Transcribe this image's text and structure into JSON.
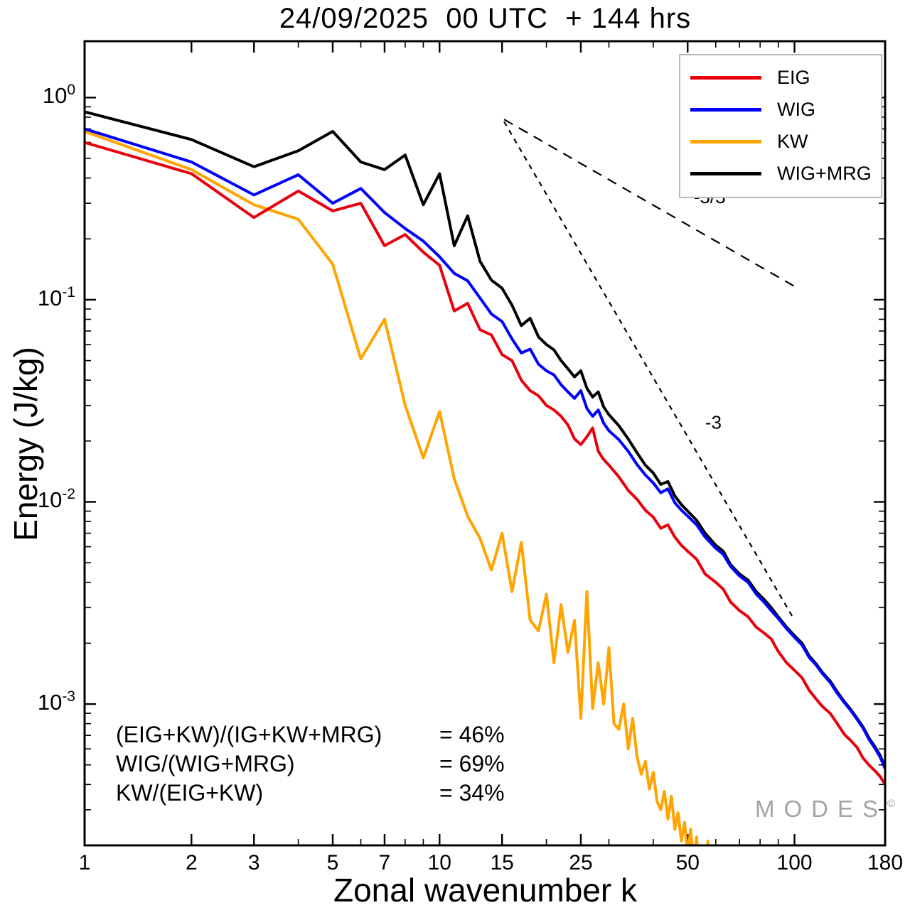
{
  "title": "24/09/2025  00 UTC  + 144 hrs",
  "chart_data": {
    "type": "line",
    "title": "24/09/2025  00 UTC  + 144 hrs",
    "xlabel": "Zonal wavenumber k",
    "ylabel": "Energy (J/kg)",
    "x_scale": "log",
    "y_scale": "log",
    "xlim": [
      1,
      180
    ],
    "ylim": [
      0.0002,
      1.9
    ],
    "grid": false,
    "legend_position": "top-right",
    "x_ticks": {
      "major": [
        1,
        2,
        3,
        5,
        7,
        10,
        15,
        25,
        50,
        100,
        180
      ],
      "labels": [
        "1",
        "2",
        "3",
        "5",
        "7",
        "10",
        "15",
        "25",
        "50",
        "100",
        "180"
      ]
    },
    "y_ticks": {
      "base": "10",
      "major": [
        {
          "v": 1,
          "exp": "0"
        },
        {
          "v": 0.1,
          "exp": "-1"
        },
        {
          "v": 0.01,
          "exp": "-2"
        },
        {
          "v": 0.001,
          "exp": "-3"
        }
      ]
    },
    "draw_order": [
      2,
      0,
      3,
      1
    ],
    "series": [
      {
        "name": "EIG",
        "color": "#e8000d",
        "points": [
          [
            1,
            0.6
          ],
          [
            2,
            0.42
          ],
          [
            3,
            0.255
          ],
          [
            4,
            0.345
          ],
          [
            5,
            0.275
          ],
          [
            6,
            0.3
          ],
          [
            7,
            0.185
          ],
          [
            8,
            0.21
          ],
          [
            9,
            0.172
          ],
          [
            10,
            0.148
          ],
          [
            11,
            0.088
          ],
          [
            12,
            0.096
          ],
          [
            13,
            0.071
          ],
          [
            14,
            0.067
          ],
          [
            15,
            0.0535
          ],
          [
            16,
            0.05
          ],
          [
            17,
            0.04
          ],
          [
            18,
            0.0355
          ],
          [
            19,
            0.0335
          ],
          [
            20,
            0.03
          ],
          [
            21,
            0.0285
          ],
          [
            22,
            0.0265
          ],
          [
            23,
            0.024
          ],
          [
            24,
            0.0205
          ],
          [
            25,
            0.0192
          ],
          [
            26,
            0.021
          ],
          [
            27,
            0.0232
          ],
          [
            28,
            0.0178
          ],
          [
            29,
            0.0162
          ],
          [
            30,
            0.0152
          ],
          [
            32,
            0.0133
          ],
          [
            34,
            0.0114
          ],
          [
            36,
            0.0103
          ],
          [
            38,
            0.0091
          ],
          [
            40,
            0.0084
          ],
          [
            42,
            0.0074
          ],
          [
            44,
            0.0077
          ],
          [
            46,
            0.0067
          ],
          [
            48,
            0.0061
          ],
          [
            50,
            0.0057
          ],
          [
            53,
            0.0052
          ],
          [
            56,
            0.0044
          ],
          [
            60,
            0.004
          ],
          [
            63,
            0.0037
          ],
          [
            66,
            0.0032
          ],
          [
            70,
            0.0029
          ],
          [
            74,
            0.0027
          ],
          [
            78,
            0.0024
          ],
          [
            82,
            0.00225
          ],
          [
            86,
            0.0021
          ],
          [
            90,
            0.00182
          ],
          [
            95,
            0.0016
          ],
          [
            100,
            0.00147
          ],
          [
            105,
            0.00135
          ],
          [
            110,
            0.00117
          ],
          [
            115,
            0.00106
          ],
          [
            120,
            0.00097
          ],
          [
            126,
            0.0009
          ],
          [
            132,
            0.0008
          ],
          [
            138,
            0.00071
          ],
          [
            144,
            0.00066
          ],
          [
            150,
            0.00061
          ],
          [
            156,
            0.00054
          ],
          [
            162,
            0.0005
          ],
          [
            168,
            0.00047
          ],
          [
            174,
            0.00044
          ],
          [
            180,
            0.0004
          ]
        ]
      },
      {
        "name": "WIG",
        "color": "#0000ff",
        "points": [
          [
            1,
            0.7
          ],
          [
            2,
            0.48
          ],
          [
            3,
            0.33
          ],
          [
            4,
            0.415
          ],
          [
            5,
            0.3
          ],
          [
            6,
            0.355
          ],
          [
            7,
            0.27
          ],
          [
            8,
            0.225
          ],
          [
            9,
            0.195
          ],
          [
            10,
            0.163
          ],
          [
            11,
            0.135
          ],
          [
            12,
            0.124
          ],
          [
            13,
            0.102
          ],
          [
            14,
            0.085
          ],
          [
            15,
            0.078
          ],
          [
            16,
            0.064
          ],
          [
            17,
            0.0545
          ],
          [
            18,
            0.057
          ],
          [
            19,
            0.048
          ],
          [
            20,
            0.0445
          ],
          [
            21,
            0.0425
          ],
          [
            22,
            0.038
          ],
          [
            23,
            0.035
          ],
          [
            24,
            0.0325
          ],
          [
            25,
            0.0355
          ],
          [
            26,
            0.029
          ],
          [
            27,
            0.0265
          ],
          [
            28,
            0.0285
          ],
          [
            29,
            0.0245
          ],
          [
            30,
            0.0225
          ],
          [
            32,
            0.0203
          ],
          [
            34,
            0.0178
          ],
          [
            36,
            0.0153
          ],
          [
            38,
            0.0136
          ],
          [
            40,
            0.0124
          ],
          [
            42,
            0.0111
          ],
          [
            44,
            0.0116
          ],
          [
            46,
            0.0099
          ],
          [
            48,
            0.0091
          ],
          [
            50,
            0.0085
          ],
          [
            53,
            0.0077
          ],
          [
            56,
            0.0067
          ],
          [
            60,
            0.0059
          ],
          [
            63,
            0.0055
          ],
          [
            66,
            0.0048
          ],
          [
            70,
            0.0043
          ],
          [
            74,
            0.004
          ],
          [
            78,
            0.0035
          ],
          [
            82,
            0.0032
          ],
          [
            86,
            0.0029
          ],
          [
            90,
            0.00265
          ],
          [
            95,
            0.00236
          ],
          [
            100,
            0.00214
          ],
          [
            105,
            0.00196
          ],
          [
            110,
            0.0017
          ],
          [
            115,
            0.00156
          ],
          [
            120,
            0.00141
          ],
          [
            126,
            0.00128
          ],
          [
            132,
            0.00113
          ],
          [
            138,
            0.00102
          ],
          [
            144,
            0.00093
          ],
          [
            150,
            0.00084
          ],
          [
            156,
            0.00076
          ],
          [
            162,
            0.00067
          ],
          [
            168,
            0.00061
          ],
          [
            174,
            0.00055
          ],
          [
            180,
            0.00048
          ]
        ]
      },
      {
        "name": "KW",
        "color": "#ffa400",
        "points": [
          [
            1,
            0.68
          ],
          [
            2,
            0.44
          ],
          [
            3,
            0.295
          ],
          [
            4,
            0.25
          ],
          [
            5,
            0.15
          ],
          [
            6,
            0.051
          ],
          [
            7,
            0.08
          ],
          [
            8,
            0.03
          ],
          [
            9,
            0.0165
          ],
          [
            10,
            0.028
          ],
          [
            11,
            0.013
          ],
          [
            12,
            0.0085
          ],
          [
            13,
            0.0066
          ],
          [
            14,
            0.0046
          ],
          [
            15,
            0.007
          ],
          [
            16,
            0.0036
          ],
          [
            17,
            0.0063
          ],
          [
            18,
            0.0026
          ],
          [
            19,
            0.0023
          ],
          [
            20,
            0.0035
          ],
          [
            21,
            0.0016
          ],
          [
            22,
            0.0031
          ],
          [
            23,
            0.0018
          ],
          [
            24,
            0.0026
          ],
          [
            25,
            0.00085
          ],
          [
            26,
            0.0036
          ],
          [
            27,
            0.00095
          ],
          [
            28,
            0.0016
          ],
          [
            29,
            0.001
          ],
          [
            30,
            0.0019
          ],
          [
            31,
            0.0008
          ],
          [
            32,
            0.00075
          ],
          [
            33,
            0.001
          ],
          [
            34,
            0.0006
          ],
          [
            35,
            0.00085
          ],
          [
            36,
            0.00055
          ],
          [
            37,
            0.00045
          ],
          [
            38,
            0.00052
          ],
          [
            39,
            0.00038
          ],
          [
            40,
            0.00046
          ],
          [
            41,
            0.00033
          ],
          [
            42,
            0.0003
          ],
          [
            43,
            0.00037
          ],
          [
            44,
            0.00027
          ],
          [
            45,
            0.00035
          ],
          [
            46,
            0.00024
          ],
          [
            47,
            0.00029
          ],
          [
            48,
            0.00021
          ],
          [
            49,
            0.00026
          ],
          [
            50,
            0.00018
          ],
          [
            51,
            0.00024
          ],
          [
            52,
            0.00016
          ],
          [
            53,
            0.00022
          ],
          [
            54,
            0.00014
          ],
          [
            55,
            0.00019
          ],
          [
            56,
            0.00012
          ],
          [
            57,
            0.00021
          ],
          [
            58,
            0.00011
          ],
          [
            59,
            0.00019
          ],
          [
            60,
            0.0001
          ],
          [
            61,
            0.00018
          ],
          [
            62,
            9e-05
          ],
          [
            63,
            0.00017
          ],
          [
            64,
            8e-05
          ]
        ]
      },
      {
        "name": "WIG+MRG",
        "color": "#000000",
        "points": [
          [
            1,
            0.85
          ],
          [
            2,
            0.62
          ],
          [
            3,
            0.455
          ],
          [
            4,
            0.545
          ],
          [
            5,
            0.68
          ],
          [
            6,
            0.48
          ],
          [
            7,
            0.44
          ],
          [
            8,
            0.52
          ],
          [
            9,
            0.295
          ],
          [
            10,
            0.42
          ],
          [
            11,
            0.185
          ],
          [
            12,
            0.26
          ],
          [
            13,
            0.155
          ],
          [
            14,
            0.125
          ],
          [
            15,
            0.114
          ],
          [
            16,
            0.094
          ],
          [
            17,
            0.0745
          ],
          [
            18,
            0.081
          ],
          [
            19,
            0.0655
          ],
          [
            20,
            0.06
          ],
          [
            21,
            0.0565
          ],
          [
            22,
            0.05
          ],
          [
            23,
            0.0455
          ],
          [
            24,
            0.0415
          ],
          [
            25,
            0.0445
          ],
          [
            26,
            0.0365
          ],
          [
            27,
            0.033
          ],
          [
            28,
            0.035
          ],
          [
            29,
            0.0295
          ],
          [
            30,
            0.027
          ],
          [
            32,
            0.0238
          ],
          [
            34,
            0.0205
          ],
          [
            36,
            0.0175
          ],
          [
            38,
            0.0152
          ],
          [
            40,
            0.0139
          ],
          [
            42,
            0.0122
          ],
          [
            44,
            0.0126
          ],
          [
            46,
            0.0107
          ],
          [
            48,
            0.0097
          ],
          [
            50,
            0.009
          ],
          [
            53,
            0.0081
          ],
          [
            56,
            0.007
          ],
          [
            60,
            0.0061
          ],
          [
            63,
            0.0057
          ],
          [
            66,
            0.0049
          ],
          [
            70,
            0.0044
          ],
          [
            74,
            0.0041
          ],
          [
            78,
            0.0036
          ],
          [
            82,
            0.0033
          ],
          [
            86,
            0.003
          ],
          [
            90,
            0.0027
          ],
          [
            95,
            0.0024
          ],
          [
            100,
            0.00218
          ],
          [
            105,
            0.002
          ],
          [
            110,
            0.00173
          ],
          [
            115,
            0.00158
          ],
          [
            120,
            0.00143
          ],
          [
            126,
            0.0013
          ],
          [
            132,
            0.00115
          ],
          [
            138,
            0.00103
          ],
          [
            144,
            0.00094
          ],
          [
            150,
            0.00085
          ],
          [
            156,
            0.00077
          ],
          [
            162,
            0.00068
          ],
          [
            168,
            0.00062
          ],
          [
            174,
            0.00056
          ],
          [
            180,
            0.00049
          ]
        ]
      }
    ],
    "ref_lines": [
      {
        "label": "-5/3",
        "x": [
          15.2,
          103
        ],
        "y": [
          0.78,
          0.113
        ],
        "dash": "14 10",
        "label_x": 52,
        "label_y": 0.3
      },
      {
        "label": "-3",
        "x": [
          15.2,
          100
        ],
        "y": [
          0.76,
          0.0026
        ],
        "dash": "7 7",
        "label_x": 56,
        "label_y": 0.023
      }
    ]
  },
  "annotations": {
    "ratios": [
      {
        "lhs": "(EIG+KW)/(IG+KW+MRG)",
        "rhs": "= 46%"
      },
      {
        "lhs": "WIG/(WIG+MRG)",
        "rhs": "= 69%"
      },
      {
        "lhs": "KW/(EIG+KW)",
        "rhs": "= 34%"
      }
    ]
  },
  "watermark": {
    "text": "MODES",
    "sup": "©"
  }
}
